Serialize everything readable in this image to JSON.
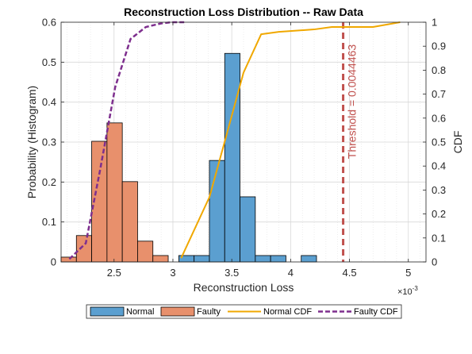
{
  "chart_data": {
    "type": "bar",
    "title": "Reconstruction Loss Distribution -- Raw Data",
    "xlabel": "Reconstruction Loss",
    "ylabel_left": "Probability (Histogram)",
    "ylabel_right": "CDF",
    "x_exponent_label": "×10",
    "x_exponent_power": "-3",
    "xlim": [
      0.00205,
      0.00515
    ],
    "ylim_left": [
      0,
      0.6
    ],
    "ylim_right": [
      0,
      1
    ],
    "x_ticks": [
      0.0025,
      0.003,
      0.0035,
      0.004,
      0.0045,
      0.005
    ],
    "x_tick_labels": [
      "2.5",
      "3",
      "3.5",
      "4",
      "4.5",
      "5"
    ],
    "y_left_ticks": [
      0,
      0.1,
      0.2,
      0.3,
      0.4,
      0.5,
      0.6
    ],
    "y_left_tick_labels": [
      "0",
      "0.1",
      "0.2",
      "0.3",
      "0.4",
      "0.5",
      "0.6"
    ],
    "y_right_ticks": [
      0,
      0.1,
      0.2,
      0.3,
      0.4,
      0.5,
      0.6,
      0.7,
      0.8,
      0.9,
      1
    ],
    "y_right_tick_labels": [
      "0",
      "0.1",
      "0.2",
      "0.3",
      "0.4",
      "0.5",
      "0.6",
      "0.7",
      "0.8",
      "0.9",
      "1"
    ],
    "grid": true,
    "legend_position": "bottom-outside",
    "histograms": [
      {
        "name": "Normal",
        "color": "#5b9fd0",
        "bins": [
          {
            "x0": 0.00305,
            "x1": 0.00318,
            "p": 0.016
          },
          {
            "x0": 0.00318,
            "x1": 0.00331,
            "p": 0.016
          },
          {
            "x0": 0.00331,
            "x1": 0.00344,
            "p": 0.254
          },
          {
            "x0": 0.00344,
            "x1": 0.00357,
            "p": 0.522
          },
          {
            "x0": 0.00357,
            "x1": 0.0037,
            "p": 0.163
          },
          {
            "x0": 0.0037,
            "x1": 0.00383,
            "p": 0.016
          },
          {
            "x0": 0.00383,
            "x1": 0.00396,
            "p": 0.016
          },
          {
            "x0": 0.00396,
            "x1": 0.00409,
            "p": 0.0
          },
          {
            "x0": 0.00409,
            "x1": 0.00422,
            "p": 0.016
          }
        ]
      },
      {
        "name": "Faulty",
        "color": "#e8906c",
        "bins": [
          {
            "x0": 0.00205,
            "x1": 0.00218,
            "p": 0.012
          },
          {
            "x0": 0.00218,
            "x1": 0.00231,
            "p": 0.066
          },
          {
            "x0": 0.00231,
            "x1": 0.00244,
            "p": 0.302
          },
          {
            "x0": 0.00244,
            "x1": 0.00257,
            "p": 0.348
          },
          {
            "x0": 0.00257,
            "x1": 0.0027,
            "p": 0.201
          },
          {
            "x0": 0.0027,
            "x1": 0.00283,
            "p": 0.052
          },
          {
            "x0": 0.00283,
            "x1": 0.00296,
            "p": 0.016
          }
        ]
      }
    ],
    "series": [
      {
        "name": "Normal CDF",
        "color": "#f0a800",
        "style": "solid",
        "x": [
          0.00307,
          0.00331,
          0.00345,
          0.0036,
          0.00375,
          0.0039,
          0.0042,
          0.00435,
          0.0045,
          0.0047,
          0.00493
        ],
        "y": [
          0.016,
          0.27,
          0.52,
          0.79,
          0.95,
          0.96,
          0.97,
          0.98,
          0.98,
          0.98,
          1.0
        ]
      },
      {
        "name": "Faulty CDF",
        "color": "#7e2f8e",
        "style": "dashed",
        "x": [
          0.00212,
          0.00226,
          0.00238,
          0.00251,
          0.00264,
          0.00277,
          0.0029,
          0.00299,
          0.0031
        ],
        "y": [
          0.012,
          0.078,
          0.38,
          0.73,
          0.93,
          0.98,
          0.995,
          1.0,
          1.0
        ]
      }
    ],
    "threshold": {
      "value": 0.0044463,
      "label": "Threshold = 0.0044463",
      "color": "#c0504d"
    }
  }
}
